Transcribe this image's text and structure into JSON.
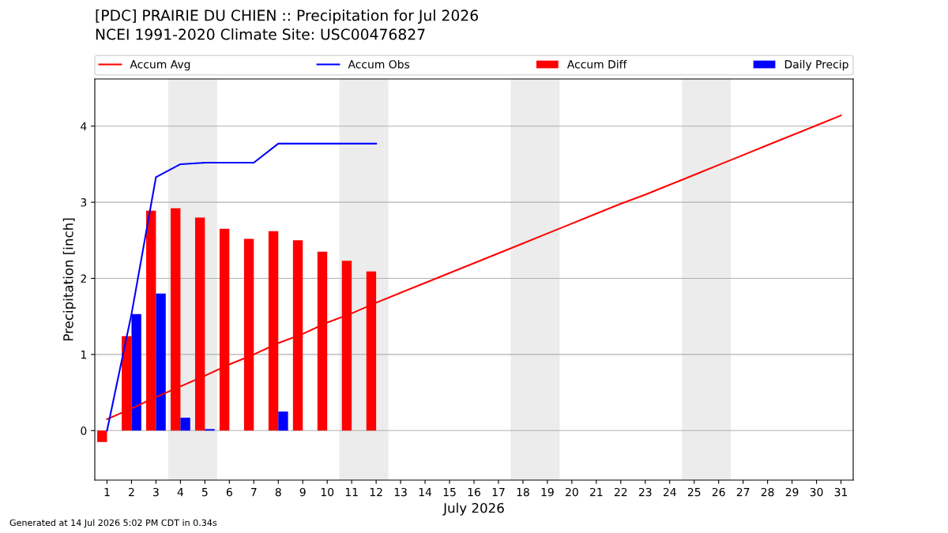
{
  "chart_data": {
    "type": "bar",
    "title": "[PDC] PRAIRIE DU CHIEN :: Precipitation for Jul 2026",
    "subtitle": "NCEI 1991-2020 Climate Site: USC00476827",
    "xlabel": "July 2026",
    "ylabel": "Precipitation [inch]",
    "x": [
      1,
      2,
      3,
      4,
      5,
      6,
      7,
      8,
      9,
      10,
      11,
      12,
      13,
      14,
      15,
      16,
      17,
      18,
      19,
      20,
      21,
      22,
      23,
      24,
      25,
      26,
      27,
      28,
      29,
      30,
      31
    ],
    "series": [
      {
        "name": "Accum Avg",
        "type": "line",
        "color": "#ff0000",
        "values": [
          0.15,
          0.29,
          0.44,
          0.58,
          0.72,
          0.87,
          1.0,
          1.15,
          1.27,
          1.42,
          1.54,
          1.68,
          1.81,
          1.94,
          2.07,
          2.2,
          2.33,
          2.46,
          2.59,
          2.72,
          2.85,
          2.98,
          3.1,
          3.23,
          3.36,
          3.49,
          3.62,
          3.75,
          3.88,
          4.01,
          4.14
        ]
      },
      {
        "name": "Accum Obs",
        "type": "line",
        "color": "#0000ff",
        "values": [
          0,
          1.53,
          3.33,
          3.5,
          3.52,
          3.52,
          3.52,
          3.77,
          3.77,
          3.77,
          3.77,
          3.77,
          null,
          null,
          null,
          null,
          null,
          null,
          null,
          null,
          null,
          null,
          null,
          null,
          null,
          null,
          null,
          null,
          null,
          null,
          null
        ]
      },
      {
        "name": "Accum Diff",
        "color": "#ff0000",
        "values": [
          -0.15,
          1.24,
          2.89,
          2.92,
          2.8,
          2.65,
          2.52,
          2.62,
          2.5,
          2.35,
          2.23,
          2.09,
          null,
          null,
          null,
          null,
          null,
          null,
          null,
          null,
          null,
          null,
          null,
          null,
          null,
          null,
          null,
          null,
          null,
          null,
          null
        ]
      },
      {
        "name": "Daily Precip",
        "color": "#0000ff",
        "values": [
          0,
          1.53,
          1.8,
          0.17,
          0.02,
          0,
          0,
          0.25,
          0,
          0,
          0,
          0,
          null,
          null,
          null,
          null,
          null,
          null,
          null,
          null,
          null,
          null,
          null,
          null,
          null,
          null,
          null,
          null,
          null,
          null,
          null
        ]
      }
    ],
    "xlim": [
      0.5,
      31.5
    ],
    "ylim": [
      -0.65,
      4.62
    ],
    "xticks": [
      1,
      2,
      3,
      4,
      5,
      6,
      7,
      8,
      9,
      10,
      11,
      12,
      13,
      14,
      15,
      16,
      17,
      18,
      19,
      20,
      21,
      22,
      23,
      24,
      25,
      26,
      27,
      28,
      29,
      30,
      31
    ],
    "yticks": [
      0,
      1,
      2,
      3,
      4
    ],
    "grid": "y",
    "legend": "top",
    "bands": [
      {
        "axis": "x",
        "from": 3.5,
        "to": 5.5,
        "color": "#ececec"
      },
      {
        "axis": "x",
        "from": 10.5,
        "to": 12.5,
        "color": "#ececec"
      },
      {
        "axis": "x",
        "from": 17.5,
        "to": 19.5,
        "color": "#ececec"
      },
      {
        "axis": "x",
        "from": 24.5,
        "to": 26.5,
        "color": "#ececec"
      }
    ],
    "annotations": [
      "Generated at 14 Jul 2026 5:02 PM CDT in 0.34s"
    ]
  }
}
